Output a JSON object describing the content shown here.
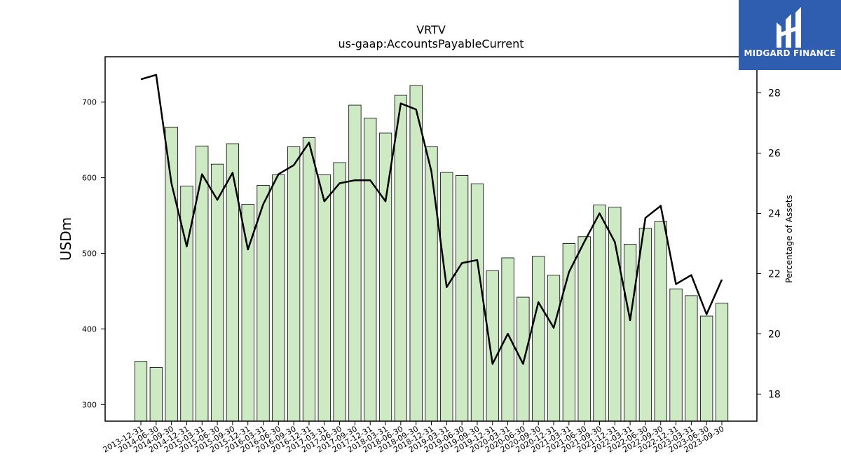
{
  "chart_data": {
    "type": "bar+line",
    "title": "VRTV",
    "subtitle": "us-gaap:AccountsPayableCurrent",
    "ylabel": "USDm",
    "y2label": "Percentage of Assets",
    "ylim": [
      278,
      760
    ],
    "y2lim": [
      17.1,
      29.2
    ],
    "yticks": [
      300,
      400,
      500,
      600,
      700
    ],
    "y2ticks": [
      18,
      20,
      22,
      24,
      26,
      28
    ],
    "categories": [
      "2013-12-31",
      "2014-06-30",
      "2014-09-30",
      "2014-12-31",
      "2015-03-31",
      "2015-06-30",
      "2015-09-30",
      "2015-12-31",
      "2016-03-31",
      "2016-06-30",
      "2016-09-30",
      "2016-12-31",
      "2017-03-31",
      "2017-06-30",
      "2017-09-30",
      "2017-12-31",
      "2018-03-31",
      "2018-06-30",
      "2018-09-30",
      "2018-12-31",
      "2019-03-31",
      "2019-06-30",
      "2019-09-30",
      "2019-12-31",
      "2020-03-31",
      "2020-06-30",
      "2020-09-30",
      "2020-12-31",
      "2021-03-31",
      "2021-06-30",
      "2021-09-30",
      "2021-12-31",
      "2022-03-31",
      "2022-06-30",
      "2022-09-30",
      "2022-12-31",
      "2023-03-31",
      "2023-06-30",
      "2023-09-30"
    ],
    "series": [
      {
        "axis": "left",
        "type": "bar",
        "color": "#cdeac5",
        "values": [
          357,
          349,
          667,
          589,
          642,
          618,
          645,
          565,
          590,
          604,
          641,
          653,
          604,
          620,
          696,
          679,
          659,
          709,
          722,
          641,
          607,
          603,
          592,
          477,
          494,
          442,
          496,
          471,
          513,
          522,
          564,
          561,
          512,
          533,
          542,
          453,
          444,
          417,
          434
        ]
      },
      {
        "axis": "right",
        "type": "line",
        "color": "#000000",
        "values": [
          28.45,
          28.6,
          25.0,
          22.9,
          25.3,
          24.45,
          25.35,
          22.8,
          24.3,
          25.3,
          25.6,
          26.35,
          24.4,
          25.0,
          25.1,
          25.1,
          24.4,
          27.65,
          27.45,
          25.4,
          21.55,
          22.35,
          22.45,
          19.0,
          20.0,
          19.0,
          21.05,
          20.2,
          22.05,
          23.05,
          24.0,
          23.05,
          20.45,
          23.85,
          24.25,
          21.65,
          21.95,
          20.65,
          21.8
        ]
      }
    ]
  },
  "logo": {
    "text": "MIDGARD FINANCE",
    "background": "#2f5db0"
  }
}
